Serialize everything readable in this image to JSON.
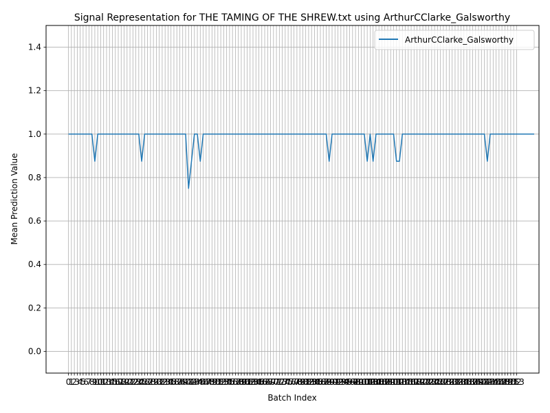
{
  "chart_data": {
    "type": "line",
    "title": "Signal Representation for THE TAMING OF THE SHREW.txt using ArthurCClarke_Galsworthy",
    "xlabel": "Batch Index",
    "ylabel": "Mean Prediction Value",
    "xlim": [
      -7.65,
      160.65
    ],
    "ylim": [
      -0.1,
      1.5
    ],
    "yticks": [
      0.0,
      0.2,
      0.4,
      0.6,
      0.8,
      1.0,
      1.2,
      1.4
    ],
    "ytick_labels": [
      "0.0",
      "0.2",
      "0.4",
      "0.6",
      "0.8",
      "1.0",
      "1.2",
      "1.4"
    ],
    "grid": true,
    "legend": {
      "position": "top-right",
      "entries": [
        "ArthurCClarke_Galsworthy"
      ]
    },
    "series": [
      {
        "name": "ArthurCClarke_Galsworthy",
        "color": "#1f77b4",
        "x_start": 0,
        "values": [
          1,
          1,
          1,
          1,
          1,
          1,
          1,
          1,
          1,
          0.875,
          1,
          1,
          1,
          1,
          1,
          1,
          1,
          1,
          1,
          1,
          1,
          1,
          1,
          1,
          1,
          0.875,
          1,
          1,
          1,
          1,
          1,
          1,
          1,
          1,
          1,
          1,
          1,
          1,
          1,
          1,
          1,
          0.75,
          0.875,
          1,
          1,
          0.875,
          1,
          1,
          1,
          1,
          1,
          1,
          1,
          1,
          1,
          1,
          1,
          1,
          1,
          1,
          1,
          1,
          1,
          1,
          1,
          1,
          1,
          1,
          1,
          1,
          1,
          1,
          1,
          1,
          1,
          1,
          1,
          1,
          1,
          1,
          1,
          1,
          1,
          1,
          1,
          1,
          1,
          1,
          1,
          0.875,
          1,
          1,
          1,
          1,
          1,
          1,
          1,
          1,
          1,
          1,
          1,
          1,
          0.875,
          1,
          0.875,
          1,
          1,
          1,
          1,
          1,
          1,
          1,
          0.875,
          0.875,
          1,
          1,
          1,
          1,
          1,
          1,
          1,
          1,
          1,
          1,
          1,
          1,
          1,
          1,
          1,
          1,
          1,
          1,
          1,
          1,
          1,
          1,
          1,
          1,
          1,
          1,
          1,
          1,
          1,
          0.875,
          1,
          1,
          1,
          1,
          1,
          1,
          1,
          1,
          1,
          1,
          1,
          1,
          1,
          1,
          1,
          1
        ]
      }
    ],
    "x_tick_labels": [
      "0",
      "1",
      "2",
      "3",
      "4",
      "5",
      "6",
      "7",
      "8",
      "9",
      "10",
      "11",
      "12",
      "13",
      "14",
      "15",
      "16",
      "17",
      "18",
      "19",
      "20",
      "21",
      "22",
      "23",
      "24",
      "25",
      "26",
      "27",
      "28",
      "29",
      "30",
      "31",
      "32",
      "33",
      "34",
      "35",
      "36",
      "37",
      "38",
      "39",
      "40",
      "41",
      "42",
      "43",
      "44",
      "45",
      "46",
      "47",
      "48",
      "49",
      "50",
      "51",
      "52",
      "53",
      "54",
      "55",
      "56",
      "57",
      "58",
      "59",
      "60",
      "61",
      "62",
      "63",
      "64",
      "65",
      "66",
      "67",
      "68",
      "69",
      "70",
      "71",
      "72",
      "73",
      "74",
      "75",
      "76",
      "77",
      "78",
      "79",
      "80",
      "81",
      "82",
      "83",
      "84",
      "85",
      "86",
      "87",
      "88",
      "89",
      "90",
      "91",
      "92",
      "93",
      "94",
      "95",
      "96",
      "97",
      "98",
      "99",
      "100",
      "101",
      "102",
      "103",
      "104",
      "105",
      "106",
      "107",
      "108",
      "109",
      "110",
      "111",
      "112",
      "113",
      "114",
      "115",
      "116",
      "117",
      "118",
      "119",
      "120",
      "121",
      "122",
      "123",
      "124",
      "125",
      "126",
      "127",
      "128",
      "129",
      "130",
      "131",
      "132",
      "133",
      "134",
      "135",
      "136",
      "137",
      "138",
      "139",
      "140",
      "141",
      "142",
      "143",
      "144",
      "145",
      "146",
      "147",
      "148",
      "149",
      "150",
      "151",
      "152",
      "153"
    ]
  }
}
